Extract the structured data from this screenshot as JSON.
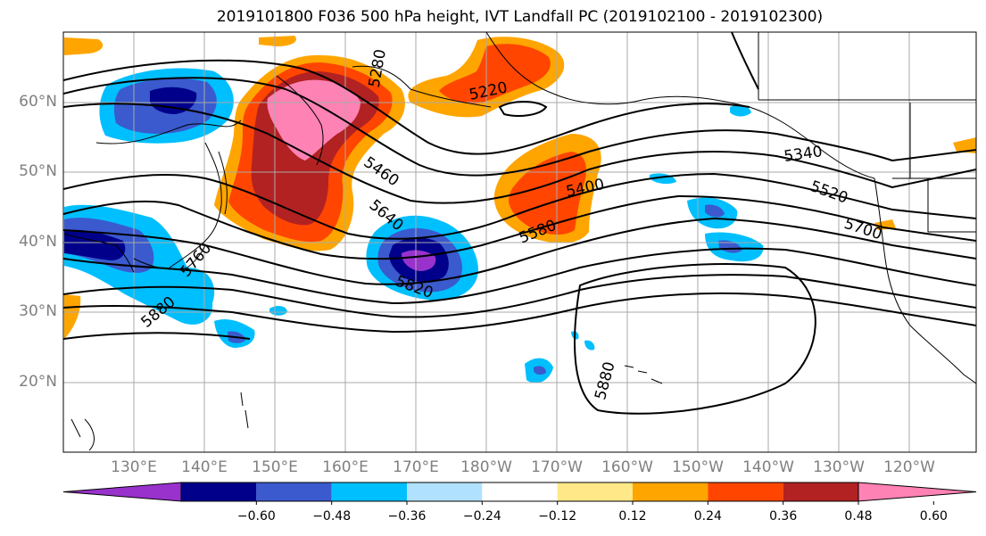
{
  "title": "2019101800 F036 500 hPa height, IVT Landfall PC (2019102100 - 2019102300)",
  "lat_labels": [
    "60°N",
    "50°N",
    "40°N",
    "30°N",
    "20°N"
  ],
  "lon_labels": [
    "130°E",
    "140°E",
    "150°E",
    "160°E",
    "170°E",
    "180°W",
    "170°W",
    "160°W",
    "150°W",
    "140°W",
    "130°W",
    "120°W"
  ],
  "contour_labels": [
    "5280",
    "5220",
    "5340",
    "5460",
    "5400",
    "5520",
    "5640",
    "5580",
    "5700",
    "5760",
    "5880",
    "5820",
    "5880"
  ],
  "colorbar": {
    "ticks": [
      "−0.60",
      "−0.48",
      "−0.36",
      "−0.24",
      "−0.12",
      "0.12",
      "0.24",
      "0.36",
      "0.48",
      "0.60"
    ],
    "colors": [
      "#9932cc",
      "#00008b",
      "#3a5acd",
      "#00bfff",
      "#b0e2ff",
      "#ffffff",
      "#ffe888",
      "#ffa500",
      "#ff4500",
      "#b22222",
      "#ff82b4"
    ]
  },
  "field_colors": {
    "land_line": "#000000",
    "grid": "#aaaaaa"
  }
}
